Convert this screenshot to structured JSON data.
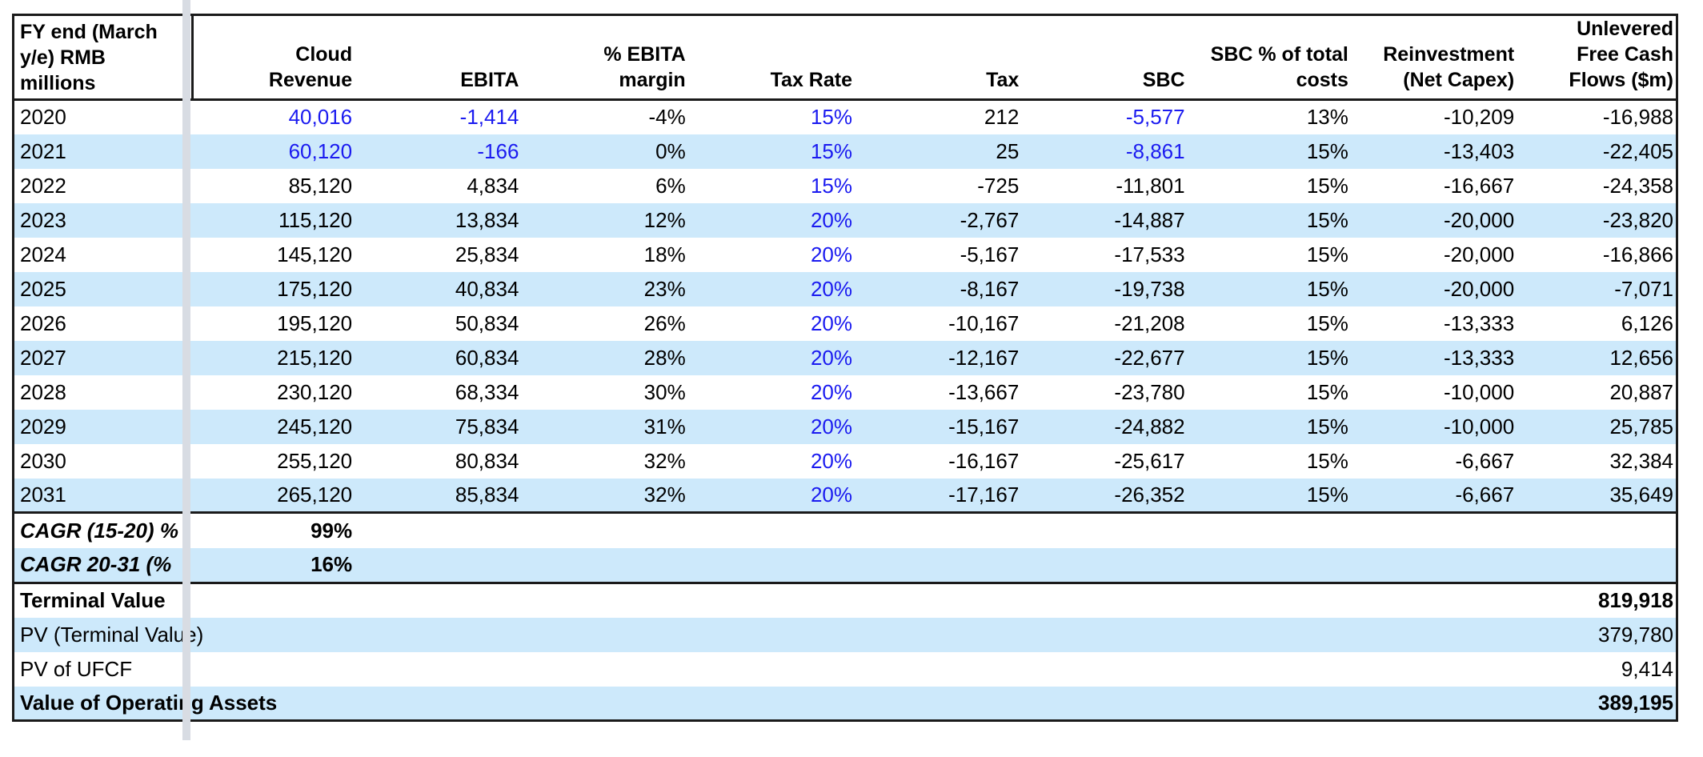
{
  "colors": {
    "row_band": "#cde9fb",
    "blue_text": "#1b1bf0",
    "pane_divider": "#d8dce3",
    "border": "#1a1a1a"
  },
  "table": {
    "header": {
      "row_label": "FY end (March\ny/e) RMB\nmillions",
      "columns": [
        "Cloud\nRevenue",
        "EBITA",
        "% EBITA\nmargin",
        "Tax Rate",
        "Tax",
        "SBC",
        "SBC % of total\ncosts",
        "Reinvestment\n(Net Capex)",
        "Unlevered\nFree Cash\nFlows ($m)"
      ]
    },
    "year_rows": [
      {
        "label": "2020",
        "values": [
          "40,016",
          "-1,414",
          "-4%",
          "15%",
          "212",
          "-5,577",
          "13%",
          "-10,209",
          "-16,988"
        ],
        "blue": [
          0,
          1,
          3,
          5
        ]
      },
      {
        "label": "2021",
        "values": [
          "60,120",
          "-166",
          "0%",
          "15%",
          "25",
          "-8,861",
          "15%",
          "-13,403",
          "-22,405"
        ],
        "blue": [
          0,
          1,
          3,
          5
        ]
      },
      {
        "label": "2022",
        "values": [
          "85,120",
          "4,834",
          "6%",
          "15%",
          "-725",
          "-11,801",
          "15%",
          "-16,667",
          "-24,358"
        ],
        "blue": [
          3
        ]
      },
      {
        "label": "2023",
        "values": [
          "115,120",
          "13,834",
          "12%",
          "20%",
          "-2,767",
          "-14,887",
          "15%",
          "-20,000",
          "-23,820"
        ],
        "blue": [
          3
        ]
      },
      {
        "label": "2024",
        "values": [
          "145,120",
          "25,834",
          "18%",
          "20%",
          "-5,167",
          "-17,533",
          "15%",
          "-20,000",
          "-16,866"
        ],
        "blue": [
          3
        ]
      },
      {
        "label": "2025",
        "values": [
          "175,120",
          "40,834",
          "23%",
          "20%",
          "-8,167",
          "-19,738",
          "15%",
          "-20,000",
          "-7,071"
        ],
        "blue": [
          3
        ]
      },
      {
        "label": "2026",
        "values": [
          "195,120",
          "50,834",
          "26%",
          "20%",
          "-10,167",
          "-21,208",
          "15%",
          "-13,333",
          "6,126"
        ],
        "blue": [
          3
        ]
      },
      {
        "label": "2027",
        "values": [
          "215,120",
          "60,834",
          "28%",
          "20%",
          "-12,167",
          "-22,677",
          "15%",
          "-13,333",
          "12,656"
        ],
        "blue": [
          3
        ]
      },
      {
        "label": "2028",
        "values": [
          "230,120",
          "68,334",
          "30%",
          "20%",
          "-13,667",
          "-23,780",
          "15%",
          "-10,000",
          "20,887"
        ],
        "blue": [
          3
        ]
      },
      {
        "label": "2029",
        "values": [
          "245,120",
          "75,834",
          "31%",
          "20%",
          "-15,167",
          "-24,882",
          "15%",
          "-10,000",
          "25,785"
        ],
        "blue": [
          3
        ]
      },
      {
        "label": "2030",
        "values": [
          "255,120",
          "80,834",
          "32%",
          "20%",
          "-16,167",
          "-25,617",
          "15%",
          "-6,667",
          "32,384"
        ],
        "blue": [
          3
        ]
      },
      {
        "label": "2031",
        "values": [
          "265,120",
          "85,834",
          "32%",
          "20%",
          "-17,167",
          "-26,352",
          "15%",
          "-6,667",
          "35,649"
        ],
        "blue": [
          3
        ]
      }
    ],
    "cagr_rows": [
      {
        "label": "CAGR (15-20) %",
        "value": "99%"
      },
      {
        "label": "CAGR 20-31 (%",
        "value": "16%"
      }
    ],
    "summary_rows": [
      {
        "label": "Terminal Value",
        "value": "819,918",
        "bold": true
      },
      {
        "label": "PV (Terminal Value)",
        "value": "379,780",
        "bold": false
      },
      {
        "label": "PV of UFCF",
        "value": "9,414",
        "bold": false
      },
      {
        "label": "Value of Operating Assets",
        "value": "389,195",
        "bold": true
      }
    ]
  }
}
